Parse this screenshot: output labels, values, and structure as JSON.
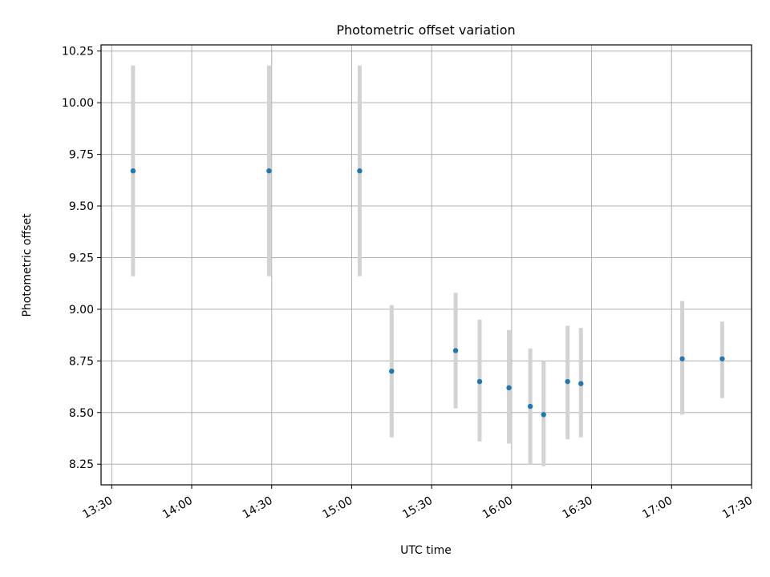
{
  "chart_data": {
    "type": "scatter",
    "title": "Photometric offset variation",
    "xlabel": "UTC time",
    "ylabel": "Photometric offset",
    "x_tick_labels": [
      "13:30",
      "14:00",
      "14:30",
      "15:00",
      "15:30",
      "16:00",
      "16:30",
      "17:00",
      "17:30"
    ],
    "y_tick_labels": [
      "8.25",
      "8.50",
      "8.75",
      "9.00",
      "9.25",
      "9.50",
      "9.75",
      "10.00",
      "10.25"
    ],
    "xlim": [
      "13:26",
      "17:30"
    ],
    "ylim": [
      8.15,
      10.28
    ],
    "grid": true,
    "points": [
      {
        "x": "13:38",
        "y": 9.67,
        "yerr_low": 9.16,
        "yerr_high": 10.18
      },
      {
        "x": "14:29",
        "y": 9.67,
        "yerr_low": 9.16,
        "yerr_high": 10.18
      },
      {
        "x": "15:03",
        "y": 9.67,
        "yerr_low": 9.16,
        "yerr_high": 10.18
      },
      {
        "x": "15:15",
        "y": 8.7,
        "yerr_low": 8.38,
        "yerr_high": 9.02
      },
      {
        "x": "15:39",
        "y": 8.8,
        "yerr_low": 8.52,
        "yerr_high": 9.08
      },
      {
        "x": "15:48",
        "y": 8.65,
        "yerr_low": 8.36,
        "yerr_high": 8.95
      },
      {
        "x": "15:59",
        "y": 8.62,
        "yerr_low": 8.35,
        "yerr_high": 8.9
      },
      {
        "x": "16:07",
        "y": 8.53,
        "yerr_low": 8.25,
        "yerr_high": 8.81
      },
      {
        "x": "16:12",
        "y": 8.49,
        "yerr_low": 8.24,
        "yerr_high": 8.75
      },
      {
        "x": "16:21",
        "y": 8.65,
        "yerr_low": 8.37,
        "yerr_high": 8.92
      },
      {
        "x": "16:26",
        "y": 8.64,
        "yerr_low": 8.38,
        "yerr_high": 8.91
      },
      {
        "x": "17:04",
        "y": 8.76,
        "yerr_low": 8.49,
        "yerr_high": 9.04
      },
      {
        "x": "17:19",
        "y": 8.76,
        "yerr_low": 8.57,
        "yerr_high": 8.94
      }
    ],
    "colors": {
      "marker": "#1f77b4",
      "errorbar": "#d3d3d3",
      "grid": "#b0b0b0"
    }
  }
}
